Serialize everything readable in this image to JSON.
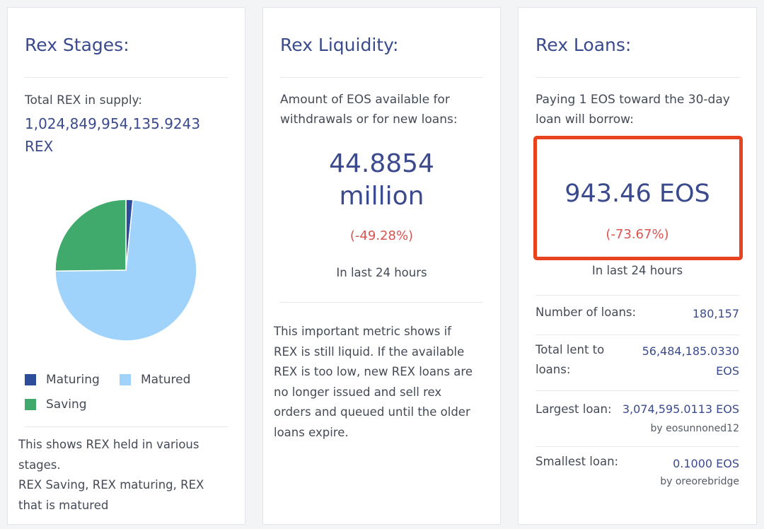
{
  "stages": {
    "title": "Rex Stages:",
    "supply_label": "Total REX in supply:",
    "supply_value": "1,024,849,954,135.9243",
    "supply_unit": "REX",
    "legend": [
      {
        "label": "Maturing",
        "color": "#2d4c9a"
      },
      {
        "label": "Matured",
        "color": "#9fd3fb"
      },
      {
        "label": "Saving",
        "color": "#3faa6c"
      }
    ],
    "desc_line1": "This shows REX held in various",
    "desc_line2": "stages.",
    "desc_line3": "REX Saving, REX maturing, REX",
    "desc_line4": "that is matured"
  },
  "chart_data": {
    "type": "pie",
    "slices": [
      {
        "label": "Maturing",
        "value": 1.6,
        "color": "#2d4c9a"
      },
      {
        "label": "Matured",
        "value": 73.2,
        "color": "#9fd3fb"
      },
      {
        "label": "Saving",
        "value": 25.2,
        "color": "#3faa6c"
      }
    ]
  },
  "liquidity": {
    "title": "Rex Liquidity:",
    "label_line1": "Amount of EOS available for",
    "label_line2": "withdrawals or for new loans:",
    "value_line1": "44.8854",
    "value_line2": "million",
    "change": "(-49.28%)",
    "period": "In last 24 hours",
    "desc_line1": "This important metric shows if",
    "desc_line2": "REX is still liquid. If the available",
    "desc_line3": "REX is too low, new REX loans are",
    "desc_line4": "no longer issued and sell rex",
    "desc_line5": "orders and queued until the older",
    "desc_line6": "loans expire."
  },
  "loans": {
    "title": "Rex Loans:",
    "label_line1": "Paying 1 EOS toward the 30-day",
    "label_line2": "loan will borrow:",
    "value": "943.46 EOS",
    "change": "(-73.67%)",
    "period": "In last 24 hours",
    "number_label": "Number of loans:",
    "number_value": "180,157",
    "total_label_line1": "Total lent to",
    "total_label_line2": "loans:",
    "total_value_line1": "56,484,185.0330",
    "total_value_line2": "EOS",
    "largest_label": "Largest loan:",
    "largest_value": "3,074,595.0113 EOS",
    "largest_by": "by eosunnoned12",
    "smallest_label": "Smallest loan:",
    "smallest_value": "0.1000 EOS",
    "smallest_by": "by oreorebridge"
  }
}
